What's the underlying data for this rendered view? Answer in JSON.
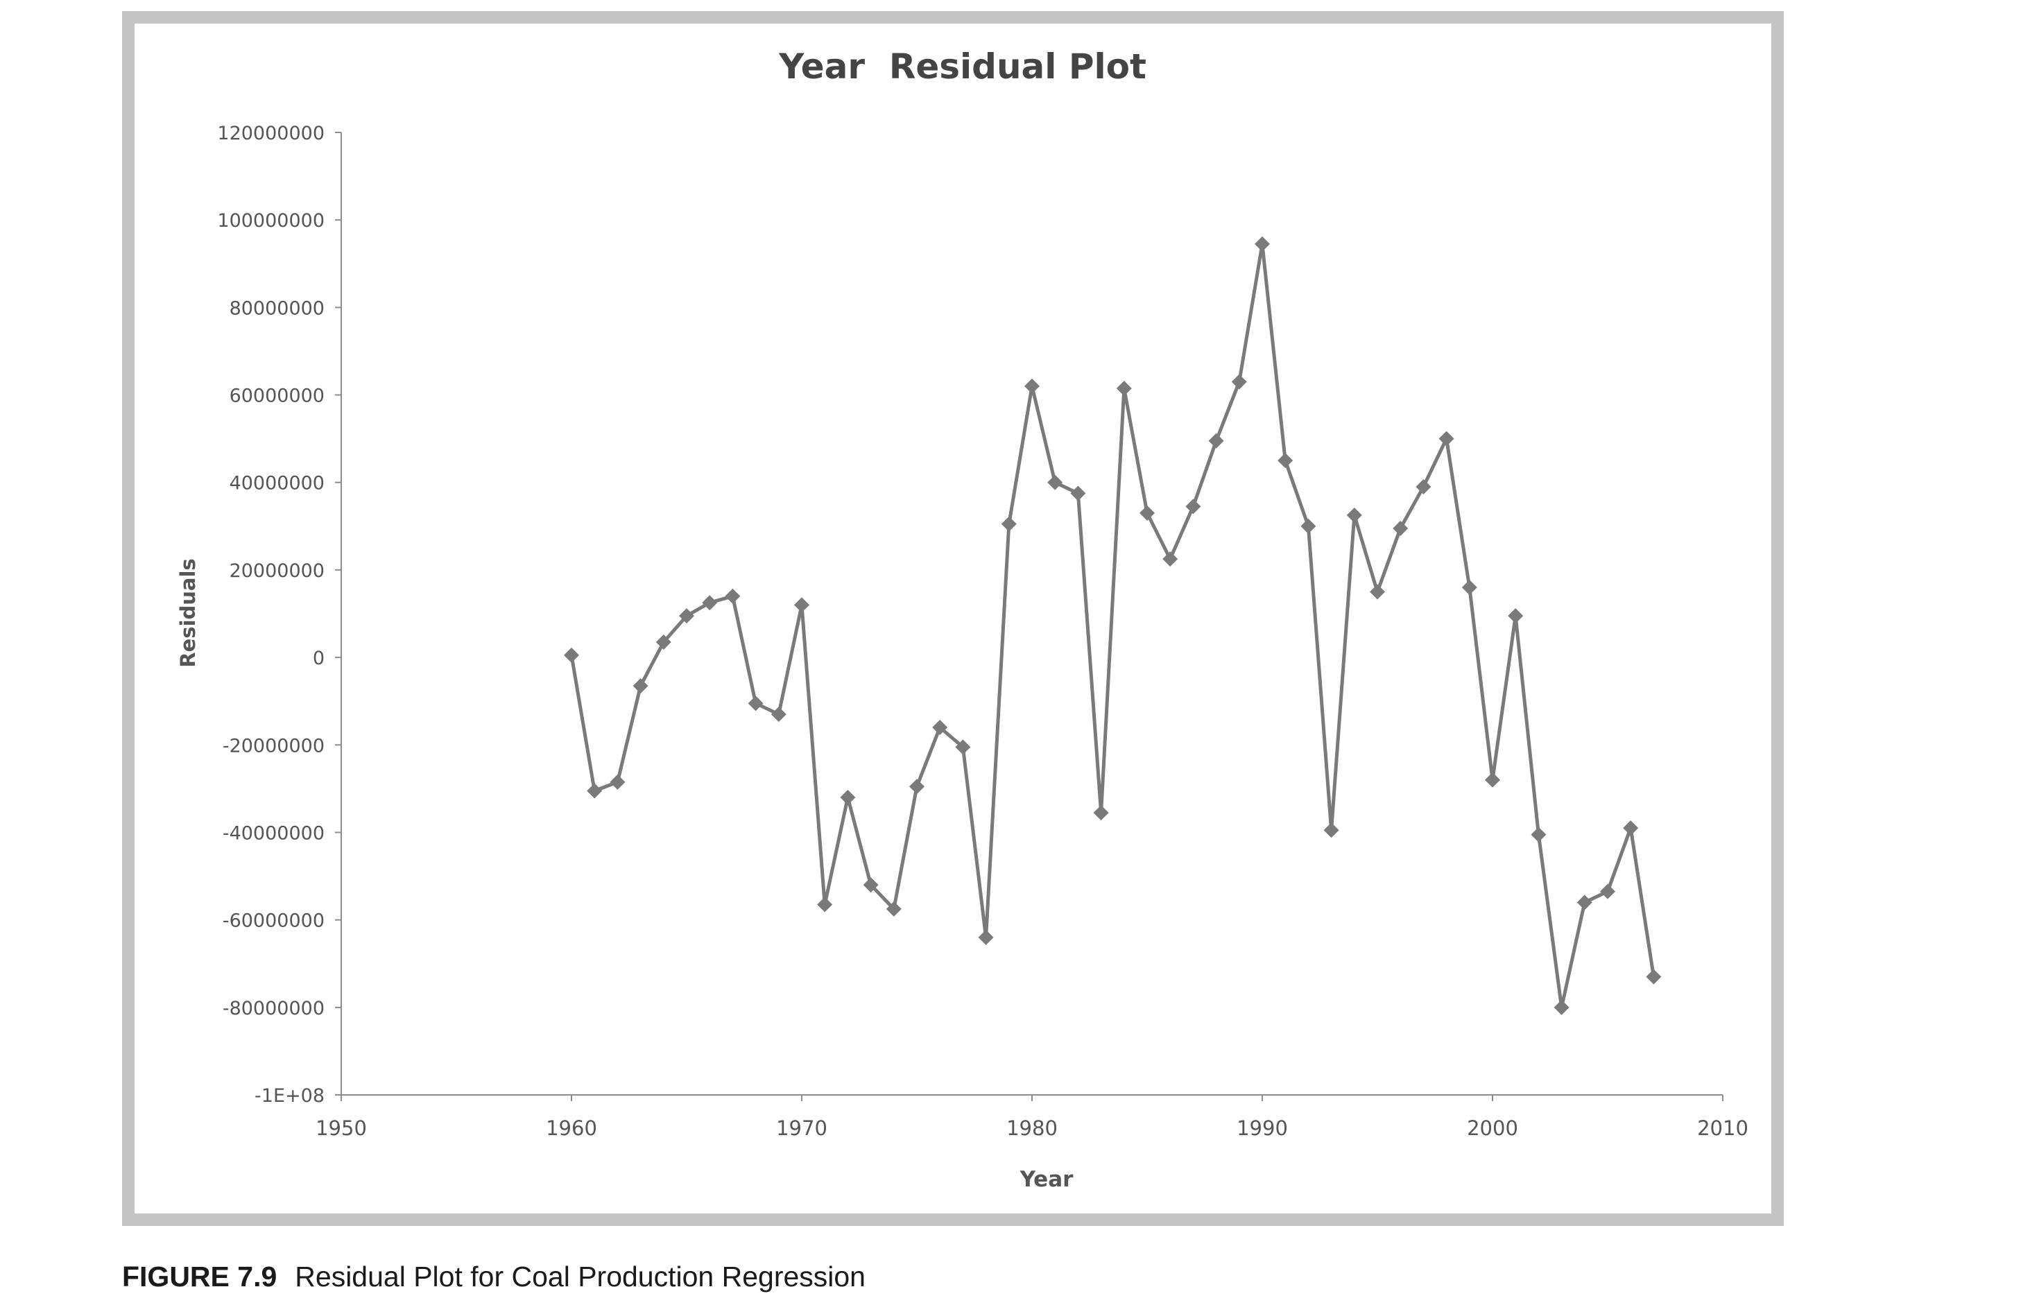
{
  "figure_caption": {
    "label": "FIGURE 7.9",
    "text": "Residual Plot for Coal Production Regression"
  },
  "colors": {
    "frame": "#c4c4c4",
    "series": "#7a7a7a",
    "axis": "#8c8c8c",
    "text": "#555555"
  },
  "chart_data": {
    "type": "line",
    "title": "Year  Residual Plot",
    "xlabel": "Year",
    "ylabel": "Residuals",
    "xlim": [
      1950,
      2010
    ],
    "ylim": [
      -100000000,
      120000000
    ],
    "x_ticks": [
      1950,
      1960,
      1970,
      1980,
      1990,
      2000,
      2010
    ],
    "x_tick_labels": [
      "1950",
      "1960",
      "1970",
      "1980",
      "1990",
      "2000",
      "2010"
    ],
    "y_ticks": [
      120000000,
      100000000,
      80000000,
      60000000,
      40000000,
      20000000,
      0,
      -20000000,
      -40000000,
      -60000000,
      -80000000,
      -100000000
    ],
    "y_tick_labels": [
      "120000000",
      "100000000",
      "80000000",
      "60000000",
      "40000000",
      "20000000",
      "0",
      "-20000000",
      "-40000000",
      "-60000000",
      "-80000000",
      "-1E+08"
    ],
    "grid": false,
    "legend": "none",
    "marker": "diamond",
    "series": [
      {
        "x": [
          1960,
          1961,
          1962,
          1963,
          1964,
          1965,
          1966,
          1967,
          1968,
          1969,
          1970,
          1971,
          1972,
          1973,
          1974,
          1975,
          1976,
          1977,
          1978,
          1979,
          1980,
          1981,
          1982,
          1983,
          1984,
          1985,
          1986,
          1987,
          1988,
          1989,
          1990,
          1991,
          1992,
          1993,
          1994,
          1995,
          1996,
          1997,
          1998,
          1999,
          2000,
          2001,
          2002,
          2003,
          2004,
          2005,
          2006,
          2007
        ],
        "values": [
          500000,
          -30500000,
          -28500000,
          -6500000,
          3500000,
          9500000,
          12500000,
          14000000,
          -10500000,
          -13000000,
          12000000,
          -56500000,
          -32000000,
          -52000000,
          -57500000,
          -29500000,
          -16000000,
          -20500000,
          -64000000,
          30500000,
          62000000,
          40000000,
          37500000,
          -35500000,
          61500000,
          33000000,
          22500000,
          34500000,
          49500000,
          63000000,
          94500000,
          45000000,
          30000000,
          -39500000,
          32500000,
          15000000,
          29500000,
          39000000,
          50000000,
          16000000,
          -28000000,
          9500000,
          -40500000,
          -80000000,
          -56000000,
          -53500000,
          -39000000,
          -73000000
        ]
      }
    ]
  }
}
